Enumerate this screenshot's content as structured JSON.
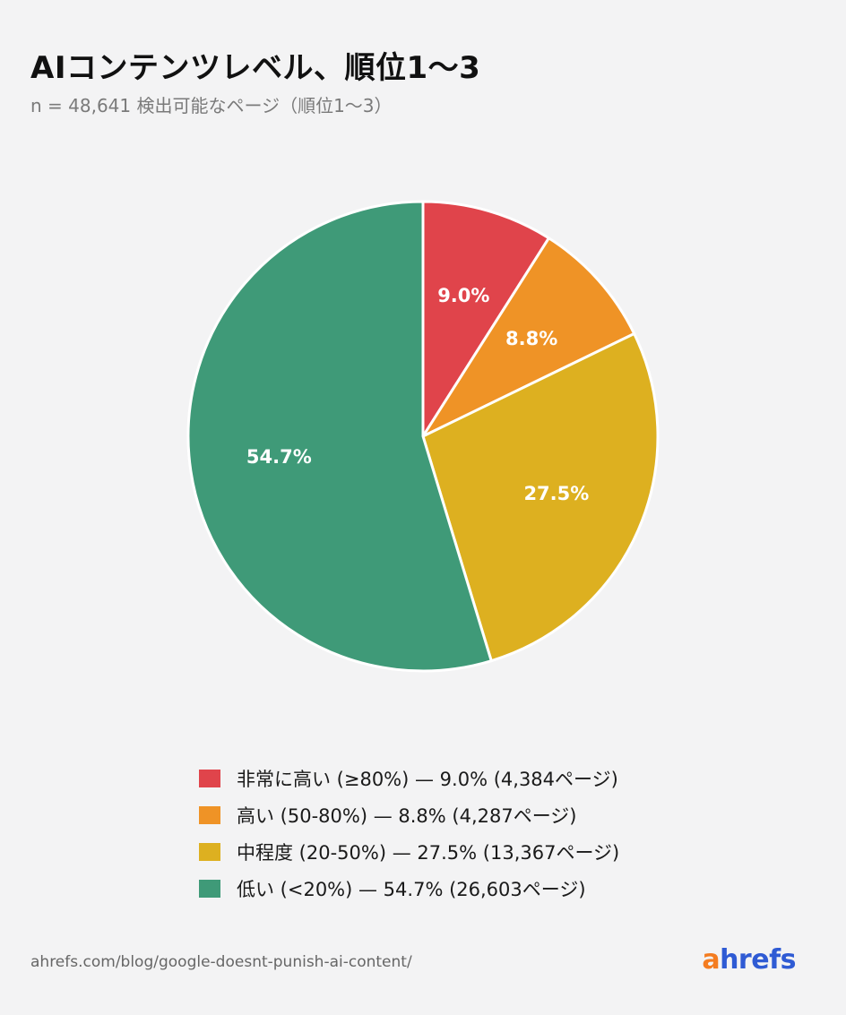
{
  "header": {
    "title": "AIコンテンツレベル、順位1〜3",
    "subtitle": "n = 48,641 検出可能なページ（順位1〜3）"
  },
  "chart_data": {
    "type": "pie",
    "title": "AIコンテンツレベル、順位1〜3",
    "subtitle": "n = 48,641 検出可能なページ（順位1〜3）",
    "slices": [
      {
        "label": "非常に高い (≥80%)",
        "value": 9.0,
        "value_label": "9.0%",
        "pages": "4,384",
        "color": "#e0444b"
      },
      {
        "label": "高い (50-80%)",
        "value": 8.8,
        "value_label": "8.8%",
        "pages": "4,287",
        "color": "#ef9326"
      },
      {
        "label": "中程度 (20-50%)",
        "value": 27.5,
        "value_label": "27.5%",
        "pages": "13,367",
        "color": "#ddb020"
      },
      {
        "label": "低い (<20%)",
        "value": 54.7,
        "value_label": "54.7%",
        "pages": "26,603",
        "color": "#3f9a78"
      }
    ],
    "start_angle": "12 o'clock",
    "direction": "clockwise",
    "legend_position": "bottom"
  },
  "legend": {
    "items": [
      {
        "text": "非常に高い (≥80%) — 9.0% (4,384ページ)",
        "color": "#e0444b"
      },
      {
        "text": "高い (50-80%) — 8.8% (4,287ページ)",
        "color": "#ef9326"
      },
      {
        "text": "中程度 (20-50%) — 27.5% (13,367ページ)",
        "color": "#ddb020"
      },
      {
        "text": "低い (<20%) — 54.7% (26,603ページ)",
        "color": "#3f9a78"
      }
    ]
  },
  "footer": {
    "source": "ahrefs.com/blog/google-doesnt-punish-ai-content/",
    "logo_a": "a",
    "logo_rest": "hrefs",
    "logo_colors": {
      "a": "#f47c20",
      "rest": "#2f5bd4"
    }
  }
}
